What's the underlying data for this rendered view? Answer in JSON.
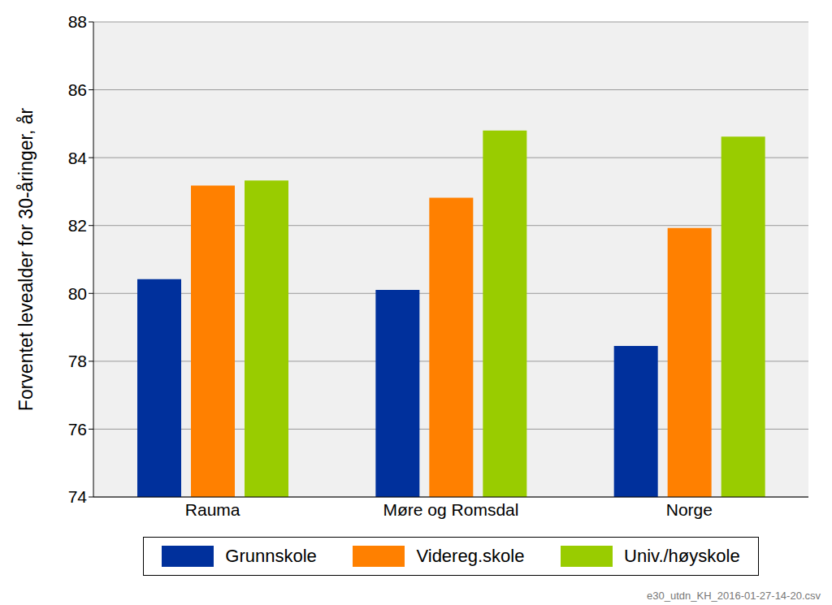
{
  "chart_data": {
    "type": "bar",
    "y_label": "Forventet levealder for 30-åringer, år",
    "categories": [
      "Rauma",
      "Møre og Romsdal",
      "Norge"
    ],
    "series": [
      {
        "name": "Grunnskole",
        "color": "#00309c",
        "values": [
          80.42,
          80.1,
          78.45
        ]
      },
      {
        "name": "Videreg.skole",
        "color": "#ff8000",
        "values": [
          83.18,
          82.82,
          81.93
        ]
      },
      {
        "name": "Univ./høyskole",
        "color": "#99cc00",
        "values": [
          83.33,
          84.8,
          84.62
        ]
      }
    ],
    "ylim": [
      74,
      88
    ],
    "yticks": [
      74,
      76,
      78,
      80,
      82,
      84,
      86,
      88
    ],
    "grid": true,
    "legend": "bottom",
    "annotations": [
      "e30_utdn_KH_2016-01-27-14-20.csv"
    ]
  }
}
